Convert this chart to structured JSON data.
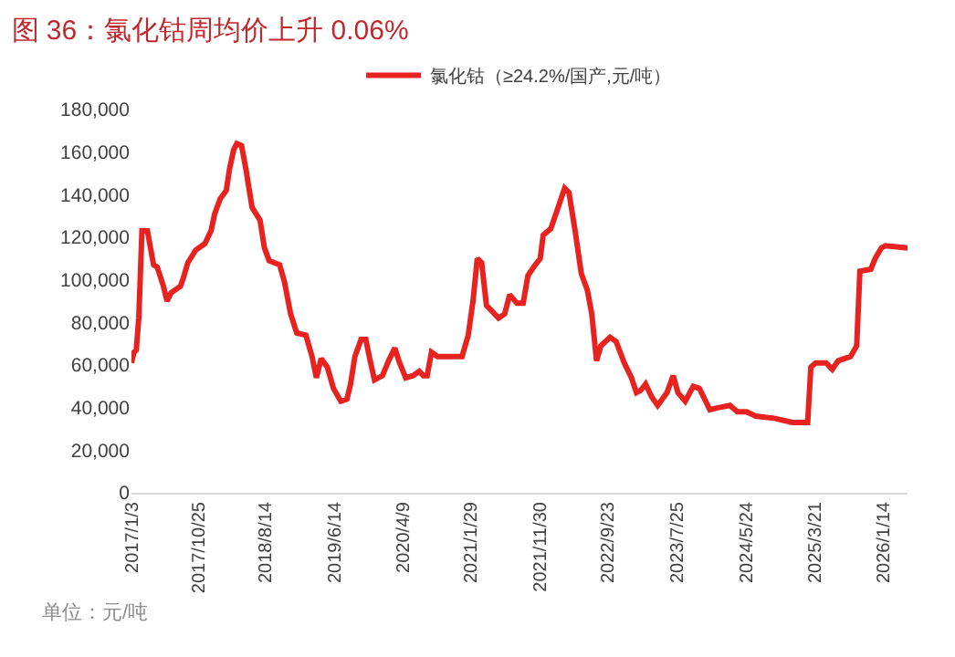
{
  "chart_data": {
    "type": "line",
    "title": "图 36：氯化钴周均价上升 0.06%",
    "annotations": [
      "单位：元/吨"
    ],
    "x": [
      "2017-01-03",
      "2017-01-14",
      "2017-01-24",
      "2017-02-04",
      "2017-02-18",
      "2017-03-14",
      "2017-03-24",
      "2017-04-10",
      "2017-04-26",
      "2017-05-23",
      "2017-06-08",
      "2017-06-26",
      "2017-08-06",
      "2017-08-19",
      "2017-09-07",
      "2017-10-12",
      "2017-11-21",
      "2017-12-18",
      "2018-01-03",
      "2018-01-27",
      "2018-02-23",
      "2018-03-09",
      "2018-03-27",
      "2018-04-10",
      "2018-05-01",
      "2018-05-20",
      "2018-06-16",
      "2018-07-21",
      "2018-08-09",
      "2018-08-30",
      "2018-10-15",
      "2018-11-05",
      "2018-12-02",
      "2018-12-29",
      "2019-02-07",
      "2019-03-06",
      "2019-03-25",
      "2019-04-15",
      "2019-05-12",
      "2019-06-08",
      "2019-07-10",
      "2019-08-06",
      "2019-08-22",
      "2019-09-10",
      "2019-10-07",
      "2019-10-28",
      "2019-11-16",
      "2019-12-05",
      "2020-01-09",
      "2020-02-05",
      "2020-03-03",
      "2020-03-24",
      "2020-04-20",
      "2020-05-22",
      "2020-06-18",
      "2020-07-07",
      "2020-07-23",
      "2020-08-11",
      "2020-09-06",
      "2020-10-30",
      "2020-12-23",
      "2021-01-19",
      "2021-02-09",
      "2021-02-28",
      "2021-03-19",
      "2021-04-09",
      "2021-06-01",
      "2021-06-28",
      "2021-07-20",
      "2021-08-21",
      "2021-09-17",
      "2021-10-08",
      "2021-11-09",
      "2021-12-01",
      "2021-12-14",
      "2022-01-16",
      "2022-02-11",
      "2022-03-18",
      "2022-04-06",
      "2022-05-03",
      "2022-05-30",
      "2022-06-26",
      "2022-07-15",
      "2022-08-05",
      "2022-08-24",
      "2022-10-03",
      "2022-10-30",
      "2022-12-04",
      "2023-01-05",
      "2023-01-27",
      "2023-02-14",
      "2023-03-08",
      "2023-04-04",
      "2023-04-30",
      "2023-06-10",
      "2023-07-07",
      "2023-07-28",
      "2023-08-29",
      "2023-10-03",
      "2023-10-30",
      "2023-12-15",
      "2024-01-24",
      "2024-03-12",
      "2024-04-14",
      "2024-05-24",
      "2024-07-03",
      "2024-09-22",
      "2024-12-11",
      "2025-02-16",
      "2025-03-02",
      "2025-03-23",
      "2025-05-08",
      "2025-06-04",
      "2025-06-30",
      "2025-08-23",
      "2025-09-19",
      "2025-10-03",
      "2025-11-20",
      "2025-12-09",
      "2026-01-05",
      "2026-01-23",
      "2026-04-30"
    ],
    "series": [
      {
        "name": "氯化钴（≥24.2%/国产,元/吨）",
        "color": "#e8231f",
        "values": [
          61000,
          66000,
          67000,
          82000,
          123000,
          123000,
          117000,
          107000,
          106000,
          97000,
          90000,
          94000,
          97000,
          101000,
          108000,
          114000,
          117000,
          123000,
          131000,
          138000,
          142000,
          152000,
          161000,
          164000,
          163000,
          152000,
          134000,
          128000,
          115000,
          109000,
          107000,
          99000,
          84000,
          75000,
          74000,
          64000,
          54000,
          63000,
          59000,
          49000,
          43000,
          44000,
          51000,
          64000,
          72000,
          72000,
          62000,
          53000,
          55000,
          62000,
          68000,
          61000,
          54000,
          55000,
          57000,
          55000,
          55000,
          66000,
          64000,
          64000,
          64000,
          74000,
          90000,
          110000,
          108000,
          88000,
          82000,
          84000,
          93000,
          89000,
          89000,
          102000,
          107000,
          110000,
          121000,
          124000,
          132000,
          143000,
          141000,
          123000,
          103000,
          95000,
          84000,
          62000,
          69000,
          73000,
          71000,
          61000,
          54000,
          47000,
          48000,
          51000,
          45000,
          41000,
          47000,
          55000,
          47000,
          43000,
          50000,
          49000,
          39000,
          40000,
          41000,
          38000,
          38000,
          36000,
          35000,
          33000,
          33000,
          59000,
          61000,
          61000,
          58000,
          62000,
          64000,
          69000,
          104000,
          105000,
          110000,
          115000,
          116000,
          115000
        ]
      }
    ],
    "xlim": [
      "2017-01-03",
      "2026-04-30"
    ],
    "xticks": [
      {
        "value": "2017-01-03",
        "label": "2017/1/3"
      },
      {
        "value": "2017-10-25",
        "label": "2017/10/25"
      },
      {
        "value": "2018-08-14",
        "label": "2018/8/14"
      },
      {
        "value": "2019-06-14",
        "label": "2019/6/14"
      },
      {
        "value": "2020-04-09",
        "label": "2020/4/9"
      },
      {
        "value": "2021-01-29",
        "label": "2021/1/29"
      },
      {
        "value": "2021-11-30",
        "label": "2021/11/30"
      },
      {
        "value": "2022-09-23",
        "label": "2022/9/23"
      },
      {
        "value": "2023-07-25",
        "label": "2023/7/25"
      },
      {
        "value": "2024-05-24",
        "label": "2024/5/24"
      },
      {
        "value": "2025-03-21",
        "label": "2025/3/21"
      },
      {
        "value": "2026-01-14",
        "label": "2026/1/14"
      }
    ],
    "ylim": [
      0,
      180000
    ],
    "yticks": [
      {
        "value": 0,
        "label": "0"
      },
      {
        "value": 20000,
        "label": "20,000"
      },
      {
        "value": 40000,
        "label": "40,000"
      },
      {
        "value": 60000,
        "label": "60,000"
      },
      {
        "value": 80000,
        "label": "80,000"
      },
      {
        "value": 100000,
        "label": "100,000"
      },
      {
        "value": 120000,
        "label": "120,000"
      },
      {
        "value": 140000,
        "label": "140,000"
      },
      {
        "value": 160000,
        "label": "160,000"
      },
      {
        "value": 180000,
        "label": "180,000"
      }
    ],
    "grid": false,
    "legend": "top",
    "marker": "none",
    "line_style": "solid"
  }
}
